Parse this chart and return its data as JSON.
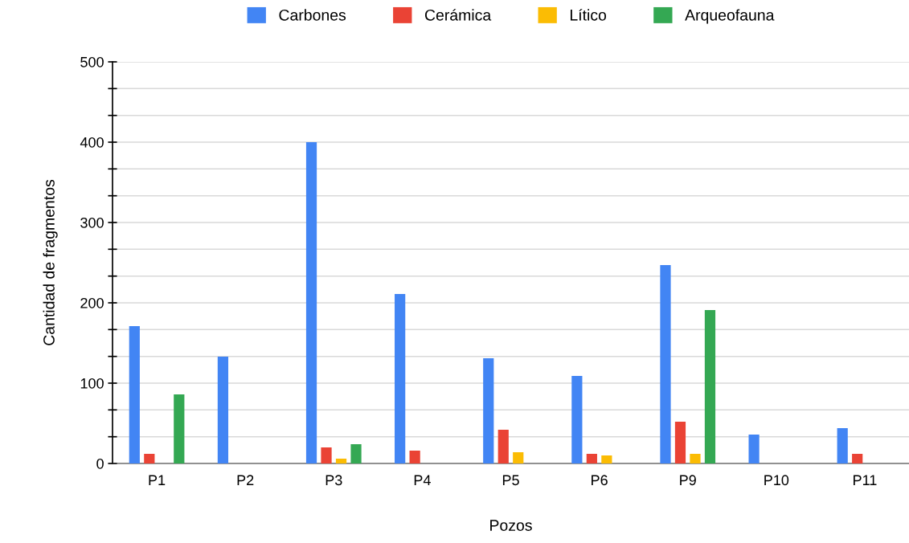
{
  "chart_data": {
    "type": "bar",
    "xlabel": "Pozos",
    "ylabel": "Cantidad de fragmentos",
    "categories": [
      "P1",
      "P2",
      "P3",
      "P4",
      "P5",
      "P6",
      "P9",
      "P10",
      "P11"
    ],
    "series": [
      {
        "name": "Carbones",
        "color": "#4285f4",
        "values": [
          171,
          133,
          400,
          211,
          131,
          109,
          247,
          36,
          44
        ]
      },
      {
        "name": "Cerámica",
        "color": "#ea4335",
        "values": [
          12,
          null,
          20,
          16,
          42,
          12,
          52,
          null,
          12
        ]
      },
      {
        "name": "Lítico",
        "color": "#fbbc04",
        "values": [
          null,
          null,
          6,
          null,
          14,
          10,
          12,
          null,
          null
        ]
      },
      {
        "name": "Arqueofauna",
        "color": "#34a853",
        "values": [
          86,
          null,
          24,
          null,
          null,
          null,
          191,
          null,
          null
        ]
      }
    ],
    "ylim": [
      0,
      500
    ],
    "yticks": [
      0,
      {
        "value": 33.3,
        "label": null
      },
      {
        "value": 66.7,
        "label": null
      },
      100,
      {
        "value": 133.3,
        "label": null
      },
      {
        "value": 166.7,
        "label": null
      },
      200,
      {
        "value": 233.3,
        "label": null
      },
      {
        "value": 266.7,
        "label": null
      },
      300,
      {
        "value": 333.3,
        "label": null
      },
      {
        "value": 366.7,
        "label": null
      },
      400,
      {
        "value": 433.3,
        "label": null
      },
      {
        "value": 466.7,
        "label": null
      },
      500
    ],
    "grid": "y",
    "legend": "top"
  }
}
